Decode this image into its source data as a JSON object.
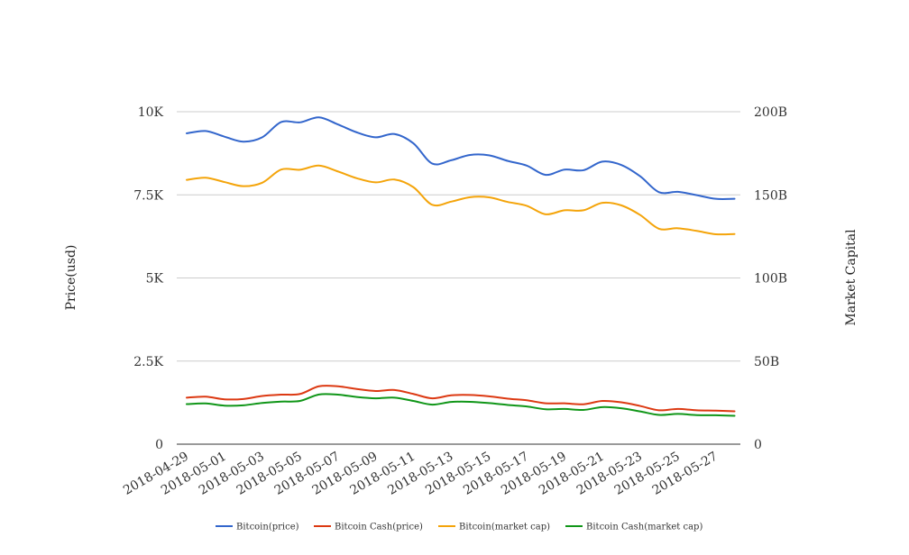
{
  "chart_data": {
    "type": "line",
    "x": [
      "2018-04-29",
      "2018-04-30",
      "2018-05-01",
      "2018-05-02",
      "2018-05-03",
      "2018-05-04",
      "2018-05-05",
      "2018-05-06",
      "2018-05-07",
      "2018-05-08",
      "2018-05-09",
      "2018-05-10",
      "2018-05-11",
      "2018-05-12",
      "2018-05-13",
      "2018-05-14",
      "2018-05-15",
      "2018-05-16",
      "2018-05-17",
      "2018-05-18",
      "2018-05-19",
      "2018-05-20",
      "2018-05-21",
      "2018-05-22",
      "2018-05-23",
      "2018-05-24",
      "2018-05-25",
      "2018-05-26",
      "2018-05-27",
      "2018-05-28"
    ],
    "x_tick_labels": [
      "2018-04-29",
      "2018-05-01",
      "2018-05-03",
      "2018-05-05",
      "2018-05-07",
      "2018-05-09",
      "2018-05-11",
      "2018-05-13",
      "2018-05-15",
      "2018-05-17",
      "2018-05-19",
      "2018-05-21",
      "2018-05-23",
      "2018-05-25",
      "2018-05-27"
    ],
    "ylabel_left": "Price(usd)",
    "ylabel_right": "Market Capital",
    "ylim_left": [
      0,
      10000
    ],
    "ylim_right": [
      0,
      200000000000
    ],
    "yticks_left": [
      "0",
      "2.5K",
      "5K",
      "7.5K",
      "10K"
    ],
    "yticks_right": [
      "0",
      "50B",
      "100B",
      "150B",
      "200B"
    ],
    "grid": true,
    "legend_position": "bottom",
    "series": [
      {
        "name": "Bitcoin(price)",
        "axis": "left",
        "color": "#3366cc",
        "values": [
          9350,
          9420,
          9250,
          9100,
          9230,
          9690,
          9680,
          9830,
          9620,
          9380,
          9230,
          9330,
          9050,
          8440,
          8540,
          8700,
          8690,
          8520,
          8380,
          8100,
          8260,
          8240,
          8500,
          8400,
          8060,
          7580,
          7590,
          7490,
          7380,
          7380
        ]
      },
      {
        "name": "Bitcoin Cash(price)",
        "axis": "left",
        "color": "#dc3912",
        "values": [
          1400,
          1430,
          1350,
          1360,
          1450,
          1490,
          1510,
          1740,
          1740,
          1660,
          1600,
          1630,
          1510,
          1380,
          1470,
          1480,
          1440,
          1370,
          1320,
          1230,
          1230,
          1200,
          1300,
          1260,
          1150,
          1020,
          1060,
          1020,
          1010,
          990
        ]
      },
      {
        "name": "Bitcoin(market cap)",
        "axis": "right",
        "color": "#f4a40a",
        "values": [
          159000000000,
          160300000000,
          157700000000,
          155200000000,
          157300000000,
          165200000000,
          165100000000,
          167600000000,
          164100000000,
          160000000000,
          157500000000,
          159200000000,
          154600000000,
          144000000000,
          145900000000,
          148600000000,
          148500000000,
          145700000000,
          143400000000,
          138300000000,
          140700000000,
          140700000000,
          145200000000,
          143700000000,
          137900000000,
          129600000000,
          129900000000,
          128300000000,
          126300000000,
          126400000000
        ]
      },
      {
        "name": "Bitcoin Cash(market cap)",
        "axis": "right",
        "color": "#109618",
        "values": [
          24100000000,
          24500000000,
          23200000000,
          23400000000,
          24800000000,
          25600000000,
          26000000000,
          29900000000,
          29800000000,
          28400000000,
          27600000000,
          28000000000,
          26000000000,
          23800000000,
          25400000000,
          25500000000,
          24700000000,
          23600000000,
          22700000000,
          21000000000,
          21200000000,
          20600000000,
          22300000000,
          21600000000,
          19700000000,
          17600000000,
          18200000000,
          17500000000,
          17400000000,
          17100000000
        ]
      }
    ]
  }
}
